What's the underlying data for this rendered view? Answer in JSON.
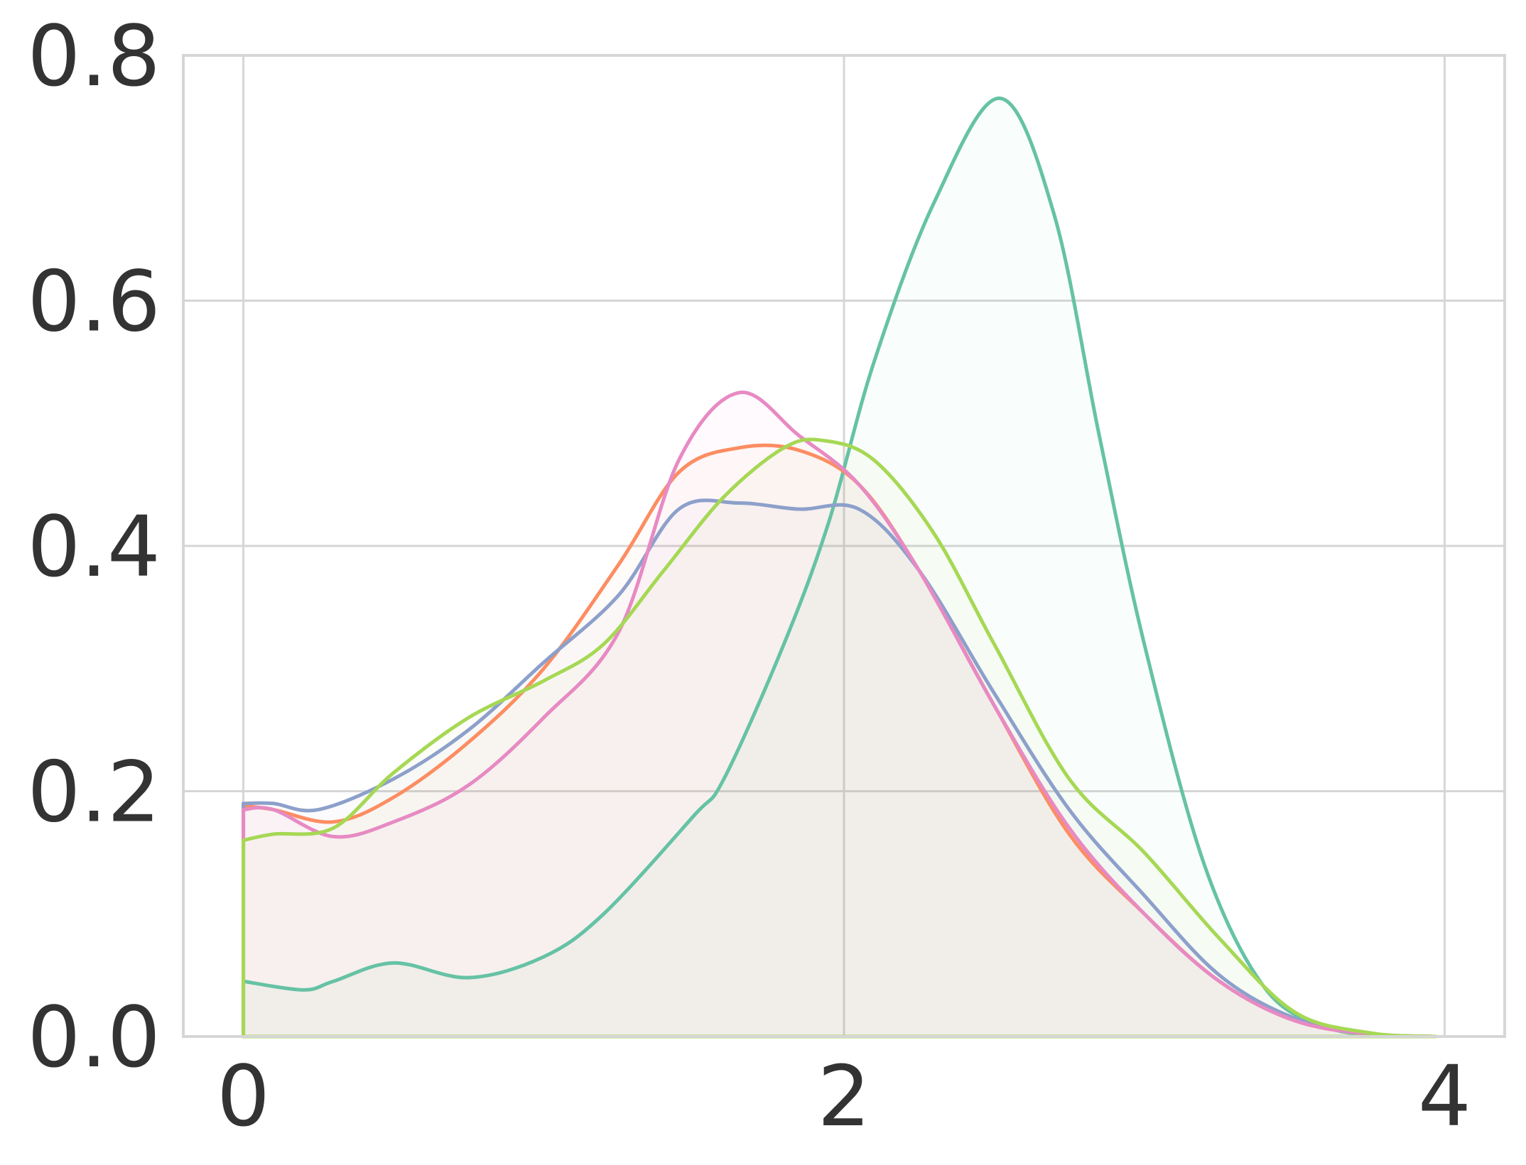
{
  "chart_data": {
    "type": "area",
    "title": "",
    "xlabel": "",
    "ylabel": "",
    "xlim": [
      -0.2,
      4.2
    ],
    "ylim": [
      0.0,
      0.8
    ],
    "x_ticks": [
      0,
      2,
      4
    ],
    "x_tick_labels": [
      "0",
      "2",
      "4"
    ],
    "y_ticks": [
      0.0,
      0.2,
      0.4,
      0.6,
      0.8
    ],
    "y_tick_labels": [
      "0.0",
      "0.2",
      "0.4",
      "0.6",
      "0.8"
    ],
    "grid": true,
    "legend": "none",
    "series": [
      {
        "color": "#66c2a5",
        "x": [
          0,
          0.2,
          0.3,
          0.5,
          0.75,
          1.0,
          1.2,
          1.5,
          1.6,
          1.8,
          1.95,
          2.1,
          2.3,
          2.52,
          2.7,
          2.85,
          3.0,
          3.2,
          3.4,
          3.6,
          3.8,
          3.97
        ],
        "y": [
          0.045,
          0.038,
          0.045,
          0.06,
          0.048,
          0.065,
          0.1,
          0.18,
          0.21,
          0.32,
          0.42,
          0.55,
          0.68,
          0.765,
          0.67,
          0.49,
          0.32,
          0.14,
          0.04,
          0.008,
          0.001,
          0.0
        ]
      },
      {
        "color": "#fc8d62",
        "x": [
          0,
          0.1,
          0.3,
          0.5,
          0.75,
          1.0,
          1.25,
          1.45,
          1.65,
          1.85,
          2.05,
          2.25,
          2.5,
          2.75,
          3.0,
          3.25,
          3.5,
          3.75,
          3.97
        ],
        "y": [
          0.188,
          0.185,
          0.175,
          0.195,
          0.24,
          0.3,
          0.385,
          0.46,
          0.48,
          0.478,
          0.45,
          0.38,
          0.27,
          0.165,
          0.1,
          0.045,
          0.013,
          0.002,
          0.0
        ]
      },
      {
        "color": "#8da0cb",
        "x": [
          0,
          0.1,
          0.25,
          0.5,
          0.75,
          1.0,
          1.25,
          1.45,
          1.65,
          1.85,
          2.05,
          2.25,
          2.5,
          2.75,
          3.0,
          3.25,
          3.5,
          3.75,
          3.97
        ],
        "y": [
          0.19,
          0.19,
          0.185,
          0.21,
          0.25,
          0.305,
          0.36,
          0.43,
          0.435,
          0.43,
          0.43,
          0.38,
          0.28,
          0.185,
          0.115,
          0.05,
          0.015,
          0.002,
          0.0
        ]
      },
      {
        "color": "#e78ac3",
        "x": [
          0,
          0.1,
          0.3,
          0.5,
          0.75,
          1.0,
          1.25,
          1.45,
          1.65,
          1.85,
          2.05,
          2.25,
          2.5,
          2.75,
          3.0,
          3.25,
          3.5,
          3.75,
          3.97
        ],
        "y": [
          0.185,
          0.185,
          0.163,
          0.175,
          0.205,
          0.26,
          0.33,
          0.47,
          0.525,
          0.49,
          0.45,
          0.38,
          0.27,
          0.17,
          0.1,
          0.045,
          0.013,
          0.002,
          0.0
        ]
      },
      {
        "color": "#a6d854",
        "x": [
          0,
          0.1,
          0.3,
          0.5,
          0.75,
          1.0,
          1.2,
          1.4,
          1.6,
          1.8,
          1.93,
          2.1,
          2.3,
          2.5,
          2.75,
          3.0,
          3.25,
          3.5,
          3.75,
          3.97
        ],
        "y": [
          0.16,
          0.165,
          0.17,
          0.215,
          0.26,
          0.29,
          0.32,
          0.38,
          0.44,
          0.48,
          0.486,
          0.47,
          0.41,
          0.32,
          0.21,
          0.15,
          0.08,
          0.02,
          0.003,
          0.0
        ]
      }
    ]
  }
}
